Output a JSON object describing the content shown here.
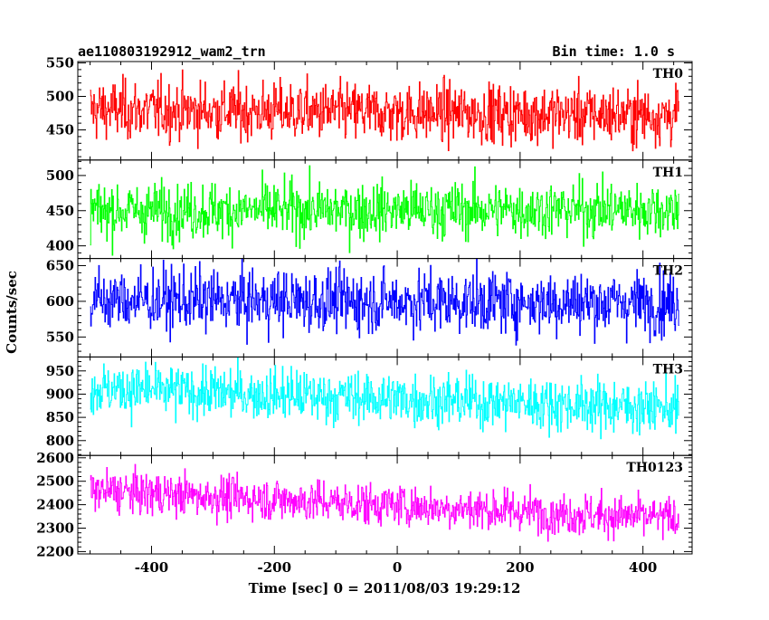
{
  "chart_data": {
    "type": "line",
    "title_left": "ae110803192912_wam2_trn",
    "title_right": "Bin time: 1.0 s",
    "xlabel": "Time [sec] 0 = 2011/08/03 19:29:12",
    "ylabel": "Counts/sec",
    "xlim": [
      -520,
      480
    ],
    "x_ticks": [
      -400,
      -200,
      0,
      200,
      400
    ],
    "x_range_data": [
      -500,
      458
    ],
    "bin_time": 1.0,
    "panels": [
      {
        "name": "TH0",
        "color": "#ff0000",
        "ylim": [
          405,
          552
        ],
        "y_ticks": [
          450,
          500,
          550
        ],
        "mean_start": 480,
        "mean_end": 472,
        "spread": 22
      },
      {
        "name": "TH1",
        "color": "#00ff00",
        "ylim": [
          382,
          522
        ],
        "y_ticks": [
          400,
          450,
          500
        ],
        "mean_start": 450,
        "mean_end": 452,
        "spread": 20
      },
      {
        "name": "TH2",
        "color": "#0000ff",
        "ylim": [
          522,
          660
        ],
        "y_ticks": [
          550,
          600,
          650
        ],
        "mean_start": 602,
        "mean_end": 598,
        "spread": 22
      },
      {
        "name": "TH3",
        "color": "#00ffff",
        "ylim": [
          768,
          980
        ],
        "y_ticks": [
          800,
          850,
          900,
          950
        ],
        "mean_start": 912,
        "mean_end": 870,
        "spread": 28
      },
      {
        "name": "TH0123",
        "color": "#ff00ff",
        "ylim": [
          2190,
          2610
        ],
        "y_ticks": [
          2200,
          2300,
          2400,
          2500,
          2600
        ],
        "mean_start": 2460,
        "mean_end": 2340,
        "spread": 45
      }
    ]
  }
}
